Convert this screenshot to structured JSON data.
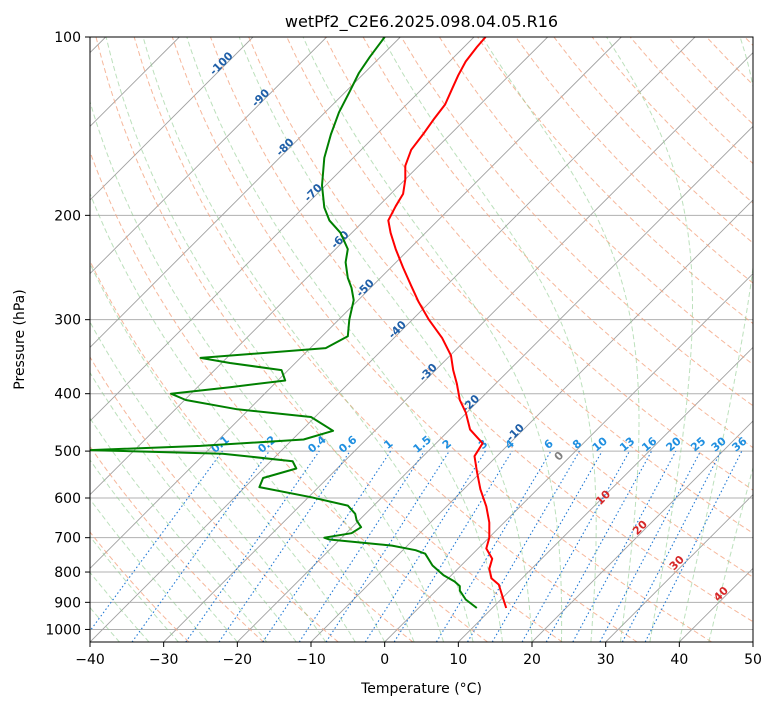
{
  "chart_data": {
    "type": "line",
    "title": "wetPf2_C2E6.2025.098.04.05.R16",
    "xlabel": "Temperature (°C)",
    "ylabel": "Pressure (hPa)",
    "xlim": [
      -40,
      50
    ],
    "ylim": [
      1050,
      100
    ],
    "y_scale": "log",
    "grid": true,
    "x_ticks": [
      -40,
      -30,
      -20,
      -10,
      0,
      10,
      20,
      30,
      40,
      50
    ],
    "y_ticks": [
      100,
      200,
      300,
      400,
      500,
      600,
      700,
      800,
      900,
      1000
    ],
    "series": [
      {
        "color": "#ff0000",
        "points": [
          [
            16.5,
            920
          ],
          [
            16.0,
            880
          ],
          [
            15.5,
            840
          ],
          [
            14.5,
            820
          ],
          [
            14.2,
            790
          ],
          [
            14.6,
            760
          ],
          [
            13.8,
            730
          ],
          [
            14.2,
            700
          ],
          [
            14.2,
            660
          ],
          [
            13.8,
            620
          ],
          [
            13.0,
            580
          ],
          [
            12.5,
            540
          ],
          [
            12.2,
            510
          ],
          [
            13.3,
            485
          ],
          [
            11.6,
            460
          ],
          [
            11.0,
            430
          ],
          [
            10.2,
            410
          ],
          [
            9.8,
            385
          ],
          [
            9.3,
            365
          ],
          [
            9.0,
            345
          ],
          [
            7.8,
            322
          ],
          [
            6.0,
            300
          ],
          [
            4.6,
            280
          ],
          [
            3.6,
            263
          ],
          [
            2.5,
            245
          ],
          [
            1.5,
            228
          ],
          [
            0.8,
            214
          ],
          [
            0.5,
            204
          ],
          [
            1.5,
            193
          ],
          [
            2.5,
            184
          ],
          [
            2.8,
            174
          ],
          [
            2.8,
            165
          ],
          [
            3.6,
            155
          ],
          [
            5.2,
            146
          ],
          [
            6.6,
            138
          ],
          [
            8.2,
            130
          ],
          [
            9.2,
            122
          ],
          [
            10.0,
            116
          ],
          [
            11.0,
            110
          ],
          [
            12.5,
            104
          ],
          [
            13.7,
            100
          ]
        ]
      },
      {
        "color": "#008000",
        "points": [
          [
            12.5,
            920
          ],
          [
            11.0,
            890
          ],
          [
            10.2,
            860
          ],
          [
            10.2,
            845
          ],
          [
            9.5,
            830
          ],
          [
            8.0,
            810
          ],
          [
            6.5,
            780
          ],
          [
            5.5,
            745
          ],
          [
            4.2,
            735
          ],
          [
            1.0,
            722
          ],
          [
            -7.5,
            705
          ],
          [
            -8.2,
            700
          ],
          [
            -4.5,
            688
          ],
          [
            -3.2,
            672
          ],
          [
            -3.8,
            655
          ],
          [
            -4.0,
            638
          ],
          [
            -5.0,
            618
          ],
          [
            -10.0,
            598
          ],
          [
            -17.0,
            575
          ],
          [
            -16.5,
            555
          ],
          [
            -12.0,
            535
          ],
          [
            -12.5,
            520
          ],
          [
            -22.0,
            505
          ],
          [
            -40.0,
            498
          ],
          [
            -25.0,
            490
          ],
          [
            -11.0,
            478
          ],
          [
            -7.0,
            462
          ],
          [
            -10.0,
            438
          ],
          [
            -20.0,
            425
          ],
          [
            -27.0,
            410
          ],
          [
            -29.0,
            400
          ],
          [
            -21.0,
            390
          ],
          [
            -13.5,
            380
          ],
          [
            -14.0,
            365
          ],
          [
            -21.0,
            355
          ],
          [
            -25.0,
            348
          ],
          [
            -8.0,
            335
          ],
          [
            -5.0,
            320
          ],
          [
            -4.8,
            300
          ],
          [
            -4.2,
            278
          ],
          [
            -4.5,
            265
          ],
          [
            -5.0,
            255
          ],
          [
            -5.3,
            240
          ],
          [
            -5.0,
            228
          ],
          [
            -6.0,
            214
          ],
          [
            -7.5,
            204
          ],
          [
            -8.2,
            194
          ],
          [
            -8.5,
            178
          ],
          [
            -8.2,
            160
          ],
          [
            -7.3,
            146
          ],
          [
            -6.2,
            134
          ],
          [
            -4.8,
            124
          ],
          [
            -3.5,
            115
          ],
          [
            -2.0,
            108
          ],
          [
            0.0,
            100
          ]
        ]
      }
    ],
    "isotherm_labels": [
      {
        "value": -100,
        "pressure": 112
      },
      {
        "value": -90,
        "pressure": 128
      },
      {
        "value": -80,
        "pressure": 155
      },
      {
        "value": -70,
        "pressure": 185
      },
      {
        "value": -60,
        "pressure": 222
      },
      {
        "value": -50,
        "pressure": 268
      },
      {
        "value": -40,
        "pressure": 315
      },
      {
        "value": -30,
        "pressure": 372
      },
      {
        "value": -20,
        "pressure": 420
      },
      {
        "value": -10,
        "pressure": 470
      }
    ],
    "mixing_ratio_labels": [
      "0.1",
      "0.2",
      "0.4",
      "0.6",
      "1",
      "1.5",
      "2",
      "3",
      "4",
      "6",
      "8",
      "10",
      "13",
      "16",
      "20",
      "25",
      "30",
      "36"
    ],
    "moist_adiabat_labels": [
      {
        "value": "0",
        "color": "#808080"
      },
      {
        "value": "10",
        "color": "#d62728"
      },
      {
        "value": "20",
        "color": "#d62728"
      },
      {
        "value": "30",
        "color": "#d62728"
      },
      {
        "value": "40",
        "color": "#d62728"
      }
    ]
  }
}
